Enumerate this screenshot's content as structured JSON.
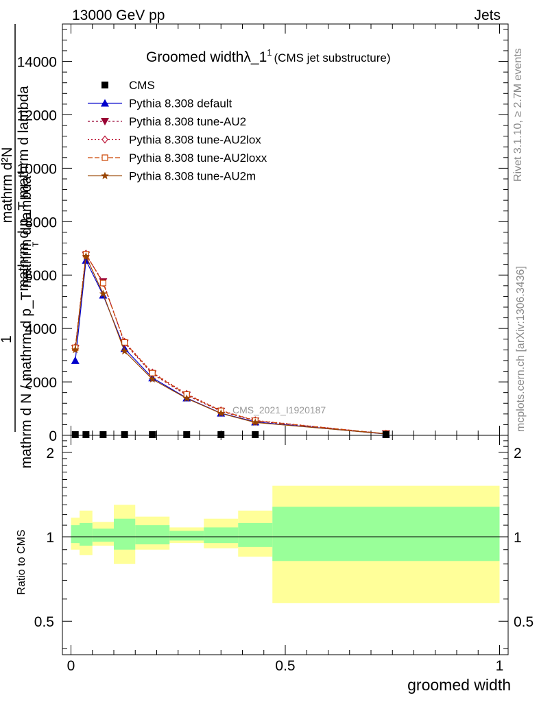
{
  "header": {
    "energy": "13000 GeV pp",
    "category": "Jets"
  },
  "side_labels": {
    "rivet": "Rivet 3.1.10, ≥ 2.7M events",
    "mcplots": "mcplots.cern.ch [arXiv:1306.3436]"
  },
  "chart_data": [
    {
      "type": "line",
      "title": "Groomed widthλ_1",
      "title_superscript": "1",
      "subtitle": "(CMS jet substructure)",
      "analysis_label": "CMS_2021_I1920187",
      "ylabel_numerator": "1",
      "ylabel_denominator": "mathrm d N / mathrm d p_T mathrm d lambda",
      "ylabel_line1": "mathrm d²N",
      "ylabel_line2": "mathrm d p_T mathrm d lambda",
      "ylabel_sub": "T",
      "xlim": [
        -0.02,
        1.02
      ],
      "ylim": [
        0,
        15400
      ],
      "yticks": [
        0,
        2000,
        4000,
        6000,
        8000,
        10000,
        12000,
        14000
      ],
      "ytick_labels": [
        "0",
        "2000",
        "4000",
        "6000",
        "8000",
        "10000",
        "12000",
        "14000"
      ],
      "legend": [
        {
          "name": "CMS",
          "color": "#000000",
          "marker": "square",
          "dash": ""
        },
        {
          "name": "Pythia 8.308 default",
          "color": "#0000cc",
          "marker": "triangle-up",
          "dash": ""
        },
        {
          "name": "Pythia 8.308 tune-AU2",
          "color": "#990033",
          "marker": "triangle-down",
          "dash": "3,3"
        },
        {
          "name": "Pythia 8.308 tune-AU2lox",
          "color": "#bb1133",
          "marker": "diamond",
          "dash": "2,3"
        },
        {
          "name": "Pythia 8.308 tune-AU2loxx",
          "color": "#cc4400",
          "marker": "square-open",
          "dash": "7,3"
        },
        {
          "name": "Pythia 8.308 tune-AU2m",
          "color": "#994400",
          "marker": "star",
          "dash": ""
        }
      ],
      "x": [
        0.01,
        0.035,
        0.075,
        0.125,
        0.19,
        0.27,
        0.35,
        0.43,
        0.735
      ],
      "cms_values": [
        0,
        0,
        0,
        0,
        0,
        0,
        0,
        0,
        0
      ],
      "series": [
        {
          "name": "Pythia 8.308 default",
          "values": [
            2800,
            6550,
            5250,
            3250,
            2150,
            1400,
            830,
            500,
            50
          ]
        },
        {
          "name": "Pythia 8.308 tune-AU2",
          "values": [
            3250,
            6750,
            5750,
            3450,
            2300,
            1500,
            900,
            540,
            60
          ]
        },
        {
          "name": "Pythia 8.308 tune-AU2lox",
          "values": [
            3300,
            6800,
            5700,
            3500,
            2350,
            1550,
            930,
            560,
            60
          ]
        },
        {
          "name": "Pythia 8.308 tune-AU2loxx",
          "values": [
            3280,
            6780,
            5700,
            3480,
            2330,
            1530,
            920,
            550,
            60
          ]
        },
        {
          "name": "Pythia 8.308 tune-AU2m",
          "values": [
            3200,
            6700,
            5300,
            3150,
            2100,
            1380,
            820,
            480,
            55
          ]
        }
      ]
    },
    {
      "type": "area",
      "ylabel": "Ratio to CMS",
      "xlabel": "groomed width",
      "xlim": [
        -0.02,
        1.02
      ],
      "ylim": [
        0.38,
        2.3
      ],
      "yticks": [
        0.5,
        1,
        2
      ],
      "ytick_labels": [
        "0.5",
        "1",
        "2"
      ],
      "xticks": [
        0,
        0.5,
        1
      ],
      "xtick_labels": [
        "0",
        "0.5",
        "1"
      ],
      "bin_edges": [
        0,
        0.02,
        0.05,
        0.1,
        0.15,
        0.23,
        0.31,
        0.39,
        0.47,
        1.0
      ],
      "outer_band": [
        [
          0.9,
          1.17
        ],
        [
          0.86,
          1.24
        ],
        [
          0.93,
          1.13
        ],
        [
          0.8,
          1.3
        ],
        [
          0.9,
          1.18
        ],
        [
          0.95,
          1.08
        ],
        [
          0.91,
          1.16
        ],
        [
          0.85,
          1.24
        ],
        [
          0.58,
          1.52
        ]
      ],
      "inner_band": [
        [
          0.95,
          1.1
        ],
        [
          0.93,
          1.12
        ],
        [
          0.96,
          1.07
        ],
        [
          0.9,
          1.16
        ],
        [
          0.94,
          1.1
        ],
        [
          0.97,
          1.05
        ],
        [
          0.95,
          1.08
        ],
        [
          0.92,
          1.12
        ],
        [
          0.82,
          1.28
        ]
      ],
      "reference": 1,
      "band_colors": {
        "outer": "#ffff99",
        "inner": "#99ff99"
      }
    }
  ]
}
